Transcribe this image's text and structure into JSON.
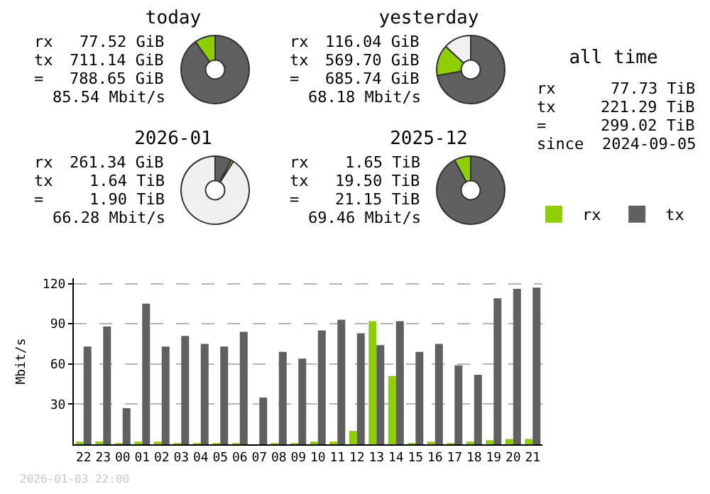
{
  "chart_data": [
    {
      "type": "donut",
      "title": "today",
      "categories": [
        null,
        null,
        null
      ],
      "values": [
        90.2,
        9.8,
        0
      ],
      "colors": [
        "#606060",
        "#8fce00",
        "#f0f0f0"
      ],
      "annotations": [
        "rx 77.52 GiB",
        "tx 711.14 GiB",
        "= 788.65 GiB",
        "85.54 Mbit/s"
      ]
    },
    {
      "type": "donut",
      "title": "yesterday",
      "categories": [
        null,
        null,
        null
      ],
      "values": [
        72.2,
        14.7,
        13.1
      ],
      "colors": [
        "#606060",
        "#8fce00",
        "#f0f0f0"
      ],
      "annotations": [
        "rx 116.04 GiB",
        "tx 569.70 GiB",
        "= 685.74 GiB",
        "68.18 Mbit/s"
      ]
    },
    {
      "type": "other",
      "title": "all time",
      "annotations": [
        "rx 77.73 TiB",
        "tx 221.29 TiB",
        "= 299.02 TiB",
        "since 2024-09-05"
      ]
    },
    {
      "type": "donut",
      "title": "2026-01",
      "categories": [
        null,
        null,
        null
      ],
      "values": [
        7.8,
        1.2,
        91.0
      ],
      "colors": [
        "#606060",
        "#8fce00",
        "#f0f0f0"
      ],
      "annotations": [
        "rx 261.34 GiB",
        "tx 1.64 TiB",
        "= 1.90 TiB",
        "66.28 Mbit/s"
      ]
    },
    {
      "type": "donut",
      "title": "2025-12",
      "categories": [
        null,
        null,
        null
      ],
      "values": [
        92.2,
        7.8,
        0
      ],
      "colors": [
        "#606060",
        "#8fce00",
        "#f0f0f0"
      ],
      "annotations": [
        "rx 1.65 TiB",
        "tx 19.50 TiB",
        "= 21.15 TiB",
        "69.46 Mbit/s"
      ]
    },
    {
      "type": "bar",
      "ylabel": "Mbit/s",
      "categories": [
        "22",
        "23",
        "00",
        "01",
        "02",
        "03",
        "04",
        "05",
        "06",
        "07",
        "08",
        "09",
        "10",
        "11",
        "12",
        "13",
        "14",
        "15",
        "16",
        "17",
        "18",
        "19",
        "20",
        "21"
      ],
      "series": [
        {
          "name": "rx",
          "color": "#8fce00",
          "values": [
            2,
            2,
            1,
            2,
            2,
            1,
            1,
            1,
            1,
            0,
            1,
            1,
            2,
            2,
            10,
            92,
            51,
            1,
            2,
            1,
            2,
            3,
            4,
            4
          ]
        },
        {
          "name": "tx",
          "color": "#606060",
          "values": [
            73,
            88,
            27,
            105,
            73,
            81,
            75,
            73,
            84,
            35,
            69,
            64,
            85,
            93,
            83,
            74,
            92,
            69,
            75,
            59,
            52,
            109,
            116,
            117
          ]
        }
      ],
      "ylim": [
        0,
        124
      ],
      "yticks": [
        30,
        60,
        90,
        120
      ],
      "grid": "y",
      "legend": "top right",
      "annotations": [
        "2026-01-03 22:00"
      ]
    }
  ]
}
